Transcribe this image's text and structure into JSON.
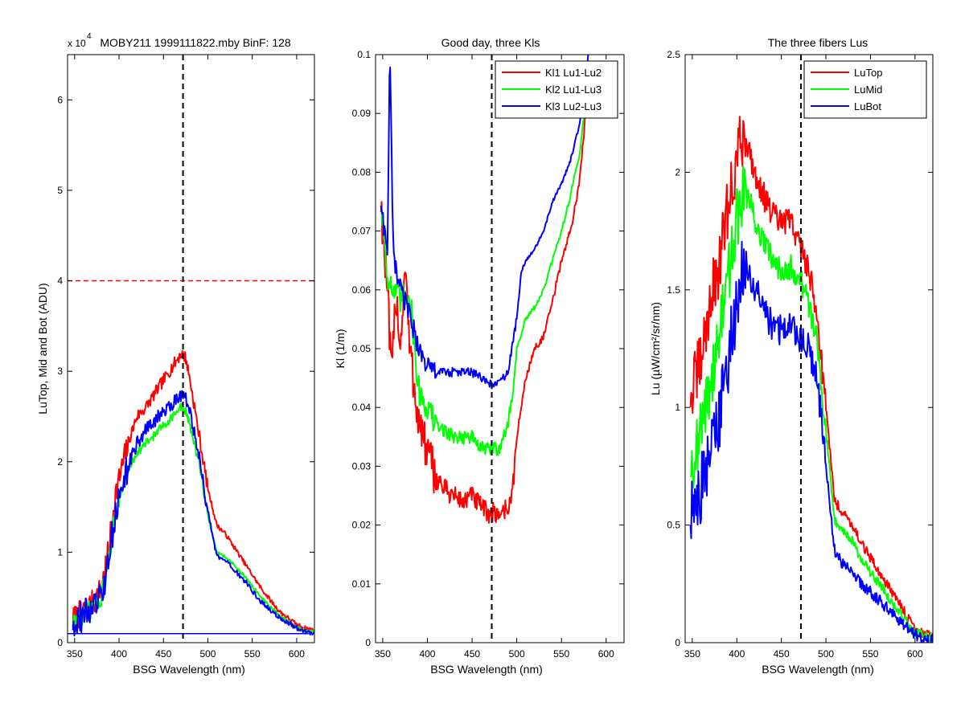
{
  "figure": {
    "background": "#ffffff"
  },
  "chart_data": [
    {
      "type": "line",
      "title": "MOBY211  1999111822.mby BinF: 128",
      "exponent": {
        "base": "x 10",
        "power": "4"
      },
      "xlabel": "BSG Wavelength (nm)",
      "ylabel": "LuTop, Mid and Bot (ADU)",
      "xlim": [
        342,
        620
      ],
      "ylim": [
        0,
        6.5
      ],
      "xticks": [
        350,
        400,
        450,
        500,
        550,
        600
      ],
      "yticks": [
        0,
        1,
        2,
        3,
        4,
        5,
        6
      ],
      "legend": null,
      "vline": {
        "x": 472,
        "color": "#000000",
        "style": "dashed"
      },
      "hlines": [
        {
          "y": 4.0,
          "color": "#ff0000",
          "style": "dashed"
        },
        {
          "y": 0.1,
          "color": "#0000ff",
          "style": "solid"
        }
      ],
      "series": [
        {
          "color": "#ff0000",
          "noise": 0.07,
          "x": [
            348,
            360,
            372,
            380,
            388,
            395,
            400,
            410,
            420,
            430,
            440,
            450,
            460,
            470,
            475,
            480,
            490,
            500,
            510,
            520,
            530,
            540,
            560,
            580,
            600,
            610,
            620
          ],
          "y": [
            0.25,
            0.35,
            0.45,
            0.6,
            1.0,
            1.6,
            1.8,
            2.2,
            2.5,
            2.6,
            2.75,
            2.9,
            3.05,
            3.2,
            3.15,
            2.9,
            2.3,
            1.7,
            1.3,
            1.2,
            1.05,
            0.9,
            0.6,
            0.35,
            0.2,
            0.16,
            0.14
          ]
        },
        {
          "color": "#00ff00",
          "noise": 0.05,
          "x": [
            348,
            360,
            372,
            380,
            388,
            395,
            400,
            410,
            420,
            430,
            440,
            450,
            460,
            470,
            475,
            480,
            490,
            500,
            510,
            520,
            530,
            540,
            560,
            580,
            600,
            610,
            620
          ],
          "y": [
            0.22,
            0.3,
            0.4,
            0.5,
            0.85,
            1.4,
            1.55,
            1.9,
            2.1,
            2.2,
            2.3,
            2.4,
            2.5,
            2.6,
            2.55,
            2.4,
            2.0,
            1.4,
            1.0,
            0.95,
            0.85,
            0.75,
            0.5,
            0.3,
            0.17,
            0.13,
            0.12
          ]
        },
        {
          "color": "#0000ff",
          "noise": 0.08,
          "x": [
            348,
            360,
            372,
            380,
            388,
            395,
            400,
            410,
            420,
            430,
            440,
            450,
            460,
            470,
            475,
            480,
            490,
            500,
            510,
            520,
            530,
            540,
            560,
            580,
            600,
            610,
            620
          ],
          "y": [
            0.22,
            0.3,
            0.4,
            0.5,
            0.85,
            1.4,
            1.6,
            1.95,
            2.2,
            2.35,
            2.45,
            2.55,
            2.65,
            2.75,
            2.7,
            2.55,
            2.05,
            1.45,
            0.95,
            0.9,
            0.8,
            0.7,
            0.45,
            0.28,
            0.16,
            0.12,
            0.11
          ]
        }
      ]
    },
    {
      "type": "line",
      "title": "Good day, three Kls",
      "xlabel": "BSG Wavelength (nm)",
      "ylabel": "Kl (1/m)",
      "xlim": [
        342,
        620
      ],
      "ylim": [
        0,
        0.1
      ],
      "xticks": [
        350,
        400,
        450,
        500,
        550,
        600
      ],
      "yticks": [
        0,
        0.01,
        0.02,
        0.03,
        0.04,
        0.05,
        0.06,
        0.07,
        0.08,
        0.09,
        0.1
      ],
      "legend": [
        "Kl1 Lu1-Lu2",
        "Kl2 Lu1-Lu3",
        "Kl3 Lu2-Lu3"
      ],
      "legend_position": "top-right",
      "vline": {
        "x": 472,
        "color": "#000000",
        "style": "dashed"
      },
      "hlines": [],
      "series": [
        {
          "name": "Kl1 Lu1-Lu2",
          "color": "#ff0000",
          "noise": 0.0018,
          "x": [
            348,
            355,
            360,
            365,
            370,
            375,
            380,
            390,
            400,
            410,
            420,
            430,
            440,
            450,
            460,
            470,
            480,
            490,
            495,
            500,
            510,
            520,
            530,
            540,
            550,
            560,
            570,
            580
          ],
          "y": [
            0.075,
            0.06,
            0.045,
            0.06,
            0.05,
            0.065,
            0.05,
            0.038,
            0.032,
            0.028,
            0.026,
            0.025,
            0.024,
            0.025,
            0.023,
            0.022,
            0.022,
            0.023,
            0.025,
            0.035,
            0.045,
            0.05,
            0.052,
            0.058,
            0.065,
            0.07,
            0.078,
            0.095
          ]
        },
        {
          "name": "Kl2 Lu1-Lu3",
          "color": "#00ff00",
          "noise": 0.0012,
          "x": [
            348,
            355,
            360,
            370,
            380,
            390,
            400,
            410,
            420,
            430,
            440,
            450,
            460,
            470,
            480,
            490,
            495,
            500,
            510,
            520,
            530,
            540,
            550,
            560,
            570,
            580
          ],
          "y": [
            0.075,
            0.063,
            0.06,
            0.058,
            0.06,
            0.043,
            0.04,
            0.037,
            0.036,
            0.035,
            0.035,
            0.035,
            0.033,
            0.033,
            0.033,
            0.037,
            0.042,
            0.05,
            0.055,
            0.057,
            0.06,
            0.065,
            0.07,
            0.076,
            0.083,
            0.095
          ]
        },
        {
          "name": "Kl3 Lu2-Lu3",
          "color": "#0000ff",
          "noise": 0.0008,
          "x": [
            348,
            352,
            355,
            358,
            362,
            370,
            380,
            390,
            400,
            410,
            420,
            430,
            440,
            450,
            460,
            470,
            480,
            490,
            500,
            505,
            510,
            520,
            530,
            540,
            550,
            560,
            570,
            580
          ],
          "y": [
            0.075,
            0.07,
            0.065,
            0.1,
            0.065,
            0.06,
            0.056,
            0.05,
            0.047,
            0.046,
            0.046,
            0.046,
            0.046,
            0.046,
            0.045,
            0.044,
            0.044,
            0.046,
            0.055,
            0.063,
            0.065,
            0.067,
            0.07,
            0.075,
            0.078,
            0.082,
            0.088,
            0.1
          ]
        }
      ]
    },
    {
      "type": "line",
      "title": "The three fibers Lus",
      "xlabel": "BSG Wavelength (nm)",
      "ylabel": "Lu (µW/cm²/sr/nm)",
      "xlim": [
        342,
        620
      ],
      "ylim": [
        0,
        2.5
      ],
      "xticks": [
        350,
        400,
        450,
        500,
        550,
        600
      ],
      "yticks": [
        0,
        0.5,
        1,
        1.5,
        2,
        2.5
      ],
      "legend": [
        "LuTop",
        "LuMid",
        "LuBot"
      ],
      "legend_position": "top-right",
      "vline": {
        "x": 472,
        "color": "#000000",
        "style": "dashed"
      },
      "hlines": [],
      "series": [
        {
          "name": "LuTop",
          "color": "#ff0000",
          "noise": 0.06,
          "x": [
            348,
            360,
            370,
            380,
            390,
            400,
            405,
            410,
            420,
            430,
            440,
            450,
            460,
            470,
            480,
            490,
            500,
            510,
            520,
            530,
            540,
            560,
            580,
            600,
            610,
            620
          ],
          "y": [
            1.05,
            1.2,
            1.45,
            1.6,
            1.85,
            2.05,
            2.15,
            2.15,
            2.0,
            1.9,
            1.82,
            1.78,
            1.8,
            1.7,
            1.6,
            1.4,
            1.0,
            0.6,
            0.55,
            0.5,
            0.42,
            0.3,
            0.18,
            0.06,
            0.04,
            0.03
          ]
        },
        {
          "name": "LuMid",
          "color": "#00ff00",
          "noise": 0.06,
          "x": [
            348,
            360,
            370,
            380,
            390,
            400,
            405,
            410,
            420,
            430,
            440,
            450,
            460,
            470,
            480,
            490,
            500,
            510,
            520,
            530,
            540,
            560,
            580,
            600,
            610,
            620
          ],
          "y": [
            0.75,
            0.9,
            1.1,
            1.3,
            1.55,
            1.8,
            1.88,
            1.92,
            1.8,
            1.7,
            1.62,
            1.6,
            1.6,
            1.55,
            1.45,
            1.3,
            0.9,
            0.52,
            0.48,
            0.43,
            0.35,
            0.25,
            0.14,
            0.04,
            0.03,
            0.02
          ]
        },
        {
          "name": "LuBot",
          "color": "#0000ff",
          "noise": 0.07,
          "x": [
            348,
            360,
            370,
            380,
            390,
            400,
            405,
            410,
            420,
            430,
            440,
            450,
            460,
            470,
            480,
            490,
            500,
            510,
            520,
            530,
            540,
            560,
            580,
            600,
            610,
            620
          ],
          "y": [
            0.55,
            0.65,
            0.8,
            0.95,
            1.2,
            1.45,
            1.55,
            1.6,
            1.5,
            1.42,
            1.35,
            1.33,
            1.35,
            1.3,
            1.25,
            1.12,
            0.75,
            0.38,
            0.33,
            0.3,
            0.25,
            0.18,
            0.1,
            0.03,
            0.02,
            0.01
          ]
        }
      ]
    }
  ]
}
